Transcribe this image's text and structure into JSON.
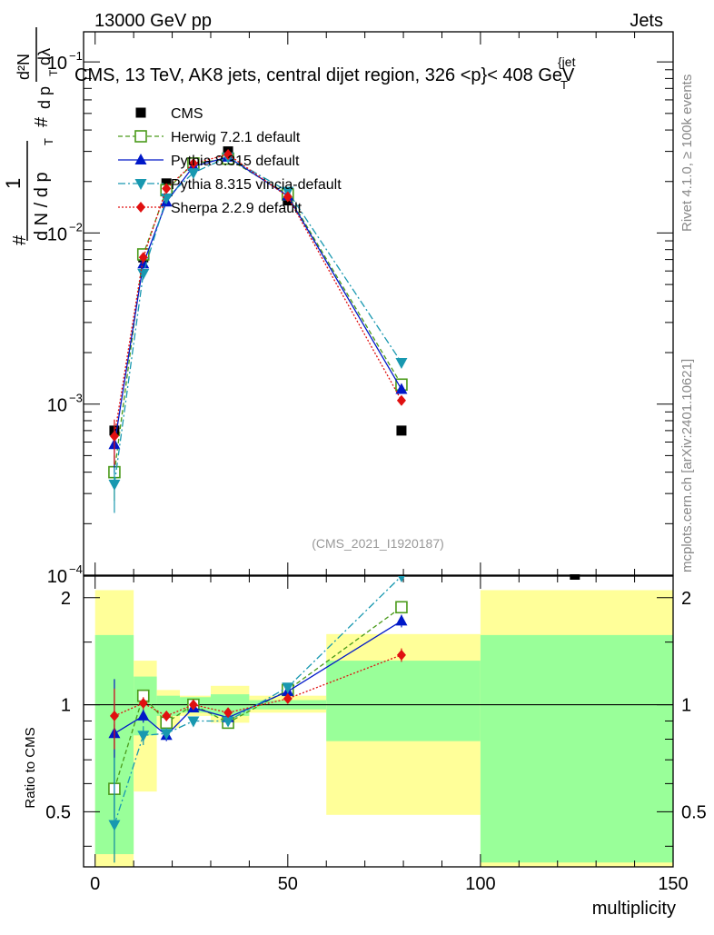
{
  "header": {
    "left": "13000 GeV pp",
    "right": "Jets"
  },
  "side_labels": {
    "rivet": "Rivet 4.1.0, ≥ 100k events",
    "mcplots": "mcplots.cern.ch [arXiv:2401.10621]"
  },
  "chart_data": {
    "type": "scatter",
    "title": "CMS, 13 TeV, AK8 jets, central dijet region, 326 < pT{jet} < 408 GeV",
    "title_parts": {
      "main": "CMS, 13 TeV, AK8 jets, central dijet region, 326 <",
      "p": "p",
      "sub": "T",
      "sup": "{jet",
      "tail": "}< 408 GeV"
    },
    "watermark": "(CMS_2021_I1920187)",
    "ylabel_parts": {
      "one": "1",
      "frac_den": "d N / d p",
      "frac_den_sub": "T",
      "frac_num": "#",
      "top_num": "d²N",
      "top_den": "d p",
      "top_den_sub": "T",
      "top_den_tail": "dλ",
      "hash": "#"
    },
    "xlabel": "multiplicity",
    "xlim": [
      -3,
      150
    ],
    "ylim_main": [
      0.0001,
      0.15
    ],
    "ylim_ratio": [
      0.35,
      2.3
    ],
    "x_ticks": [
      0,
      50,
      100,
      150
    ],
    "y_ticks_main": [
      {
        "v": 0.0001,
        "l": "10",
        "e": "−4"
      },
      {
        "v": 0.001,
        "l": "10",
        "e": "−3"
      },
      {
        "v": 0.01,
        "l": "10",
        "e": "−2"
      },
      {
        "v": 0.1,
        "l": "10",
        "e": "−1"
      }
    ],
    "y_ticks_ratio": [
      {
        "v": 0.5,
        "l": "0.5"
      },
      {
        "v": 1,
        "l": "1"
      },
      {
        "v": 2,
        "l": "2"
      }
    ],
    "ratio_ylabel": "Ratio to CMS",
    "data": {
      "name": "CMS",
      "x": [
        5,
        12.5,
        18.5,
        25.5,
        34.5,
        50,
        79.5,
        124.5
      ],
      "y": [
        0.0007,
        0.0072,
        0.0195,
        0.0255,
        0.03,
        0.0155,
        0.0007,
        8e-05
      ],
      "bands": [
        {
          "x0": 0,
          "x1": 10,
          "g": [
            0.38,
            1.57
          ],
          "y": [
            0.35,
            2.1
          ]
        },
        {
          "x0": 10,
          "x1": 16,
          "g": [
            0.82,
            1.2
          ],
          "y": [
            0.57,
            1.33
          ]
        },
        {
          "x0": 16,
          "x1": 22,
          "g": [
            0.93,
            1.06
          ],
          "y": [
            0.86,
            1.1
          ]
        },
        {
          "x0": 22,
          "x1": 30,
          "g": [
            0.95,
            1.05
          ],
          "y": [
            0.93,
            1.06
          ]
        },
        {
          "x0": 30,
          "x1": 40,
          "g": [
            0.93,
            1.07
          ],
          "y": [
            0.89,
            1.13
          ]
        },
        {
          "x0": 40,
          "x1": 60,
          "g": [
            0.97,
            1.03
          ],
          "y": [
            0.95,
            1.06
          ]
        },
        {
          "x0": 60,
          "x1": 100,
          "g": [
            0.79,
            1.33
          ],
          "y": [
            0.49,
            1.58
          ]
        },
        {
          "x0": 100,
          "x1": 150,
          "g": [
            0.36,
            1.57
          ],
          "y": [
            0.35,
            2.1
          ]
        }
      ]
    },
    "series": [
      {
        "name": "Herwig 7.2.1 default",
        "color": "#4a9a1a",
        "dash": "5,3",
        "marker": "open-square",
        "x": [
          5,
          12.5,
          18.5,
          25.5,
          34.5,
          50,
          79.5
        ],
        "y": [
          0.0004,
          0.0075,
          0.0178,
          0.0255,
          0.0272,
          0.0168,
          0.0013
        ],
        "ratio": [
          0.58,
          1.06,
          0.89,
          1.0,
          0.89,
          1.1,
          1.88
        ],
        "rerr": [
          0.3,
          0.04,
          0.03,
          0.02,
          0.02,
          0.03,
          0.07
        ]
      },
      {
        "name": "Pythia 8.315 default",
        "color": "#0018c8",
        "dash": "",
        "marker": "triangle-up",
        "x": [
          5,
          12.5,
          18.5,
          25.5,
          34.5,
          50,
          79.5
        ],
        "y": [
          0.00058,
          0.0066,
          0.0152,
          0.0245,
          0.0278,
          0.0165,
          0.00122
        ],
        "ratio": [
          0.83,
          0.93,
          0.82,
          0.98,
          0.92,
          1.09,
          1.72
        ],
        "rerr": [
          0.35,
          0.04,
          0.03,
          0.02,
          0.02,
          0.03,
          0.07
        ]
      },
      {
        "name": "Pythia 8.315 vincia-default",
        "color": "#1898b0",
        "dash": "8,3,2,3",
        "marker": "triangle-down",
        "x": [
          5,
          12.5,
          18.5,
          25.5,
          34.5,
          50,
          79.5
        ],
        "y": [
          0.00034,
          0.0058,
          0.016,
          0.0225,
          0.0278,
          0.0175,
          0.00175
        ],
        "ratio": [
          0.46,
          0.82,
          0.83,
          0.9,
          0.9,
          1.12,
          2.3
        ],
        "rerr": [
          0.25,
          0.05,
          0.03,
          0.02,
          0.02,
          0.03,
          0.08
        ]
      },
      {
        "name": "Sherpa 2.2.9 default",
        "color": "#e01010",
        "dash": "2,2",
        "marker": "diamond",
        "x": [
          5,
          12.5,
          18.5,
          25.5,
          34.5,
          50,
          79.5
        ],
        "y": [
          0.00065,
          0.0072,
          0.0182,
          0.0255,
          0.0288,
          0.0163,
          0.00105
        ],
        "ratio": [
          0.93,
          1.01,
          0.93,
          1.0,
          0.95,
          1.04,
          1.38
        ],
        "rerr": [
          0.18,
          0.04,
          0.03,
          0.02,
          0.02,
          0.03,
          0.06
        ]
      }
    ]
  }
}
